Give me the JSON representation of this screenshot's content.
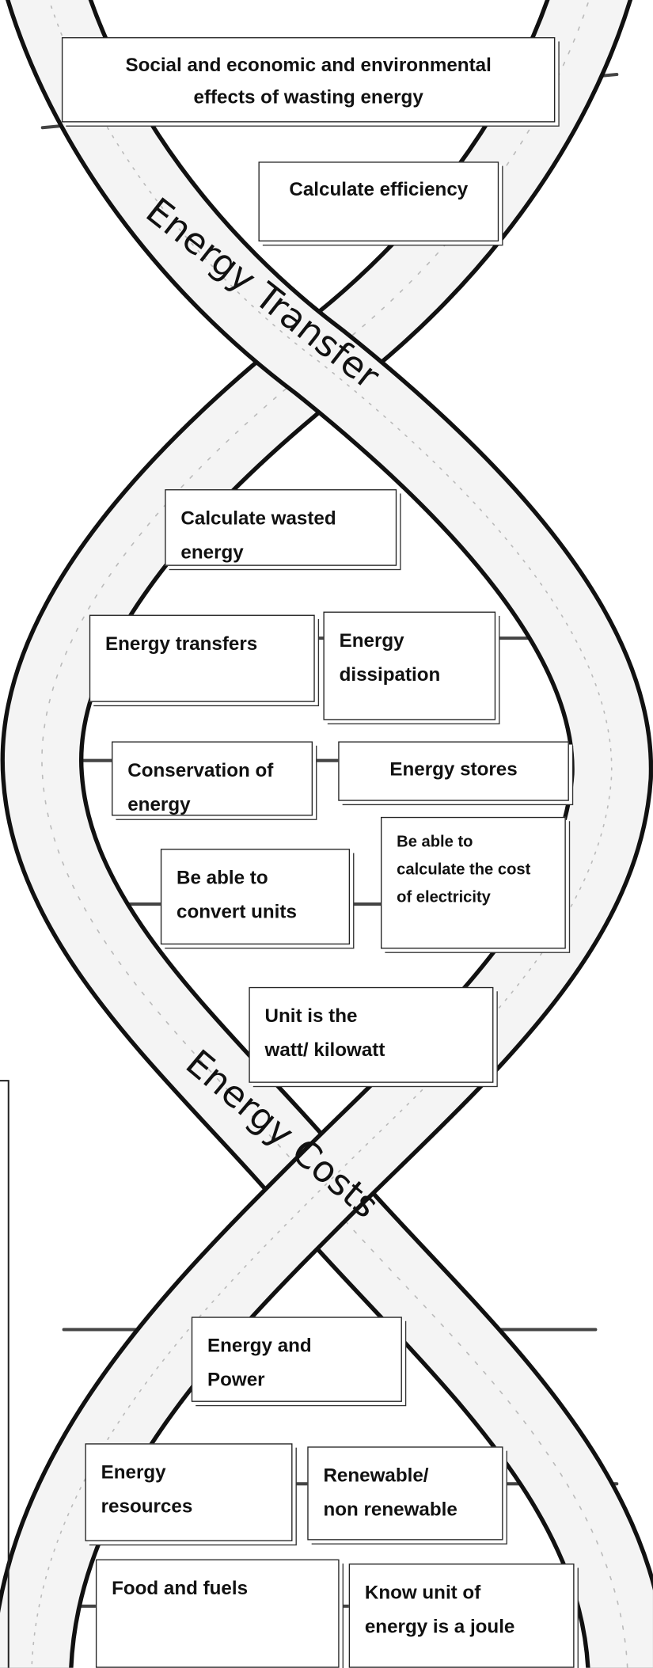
{
  "ribbon_labels": [
    "Energy Transfer",
    "Energy Costs"
  ],
  "boxes": [
    {
      "lines": [
        "Social and economic and environmental",
        "effects of wasting energy"
      ]
    },
    {
      "lines": [
        "Calculate efficiency"
      ]
    },
    {
      "lines": [
        "Calculate wasted",
        "energy"
      ]
    },
    {
      "lines": [
        "Energy transfers"
      ]
    },
    {
      "lines": [
        "Energy",
        "dissipation"
      ]
    },
    {
      "lines": [
        "Conservation of",
        "energy"
      ]
    },
    {
      "lines": [
        "Energy stores"
      ]
    },
    {
      "lines": [
        "Be able to",
        "convert units"
      ]
    },
    {
      "lines": [
        "Be able to",
        "calculate the cost",
        "of electricity"
      ]
    },
    {
      "lines": [
        "Unit is the",
        "watt/ kilowatt"
      ]
    },
    {
      "lines": [
        "Energy and",
        "Power"
      ]
    },
    {
      "lines": [
        "Energy",
        "resources"
      ]
    },
    {
      "lines": [
        "Renewable/",
        "non renewable"
      ]
    },
    {
      "lines": [
        "Food and fuels"
      ]
    },
    {
      "lines": [
        "Know unit of",
        "energy is a joule"
      ]
    }
  ]
}
